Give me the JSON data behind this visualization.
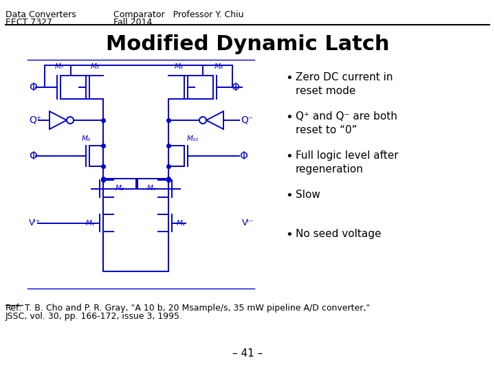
{
  "title": "Modified Dynamic Latch",
  "header_left_line1": "Data Converters",
  "header_left_line2": "EECT 7327",
  "header_center_line1": "Comparator   Professor Y. Chiu",
  "header_center_line2": "Fall 2014",
  "bullet_points": [
    "Zero DC current in\nreset mode",
    "Q⁺ and Q⁻ are both\nreset to “0”",
    "Full logic level after\nregeneration",
    "Slow",
    "No seed voltage"
  ],
  "ref_line1": "T. B. Cho and P. R. Gray, \"A 10 b, 20 Msample/s, 35 mW pipeline A/D converter,\"",
  "ref_line2": "JSSC, vol. 30, pp. 166-172, issue 3, 1995.",
  "page_number": "– 41 –",
  "bg_color": "#ffffff",
  "header_font_size": 9,
  "title_font_size": 22,
  "bullet_font_size": 11,
  "ref_font_size": 9,
  "circuit_color": "#0000cc",
  "text_color": "#000000",
  "lw": 1.4
}
